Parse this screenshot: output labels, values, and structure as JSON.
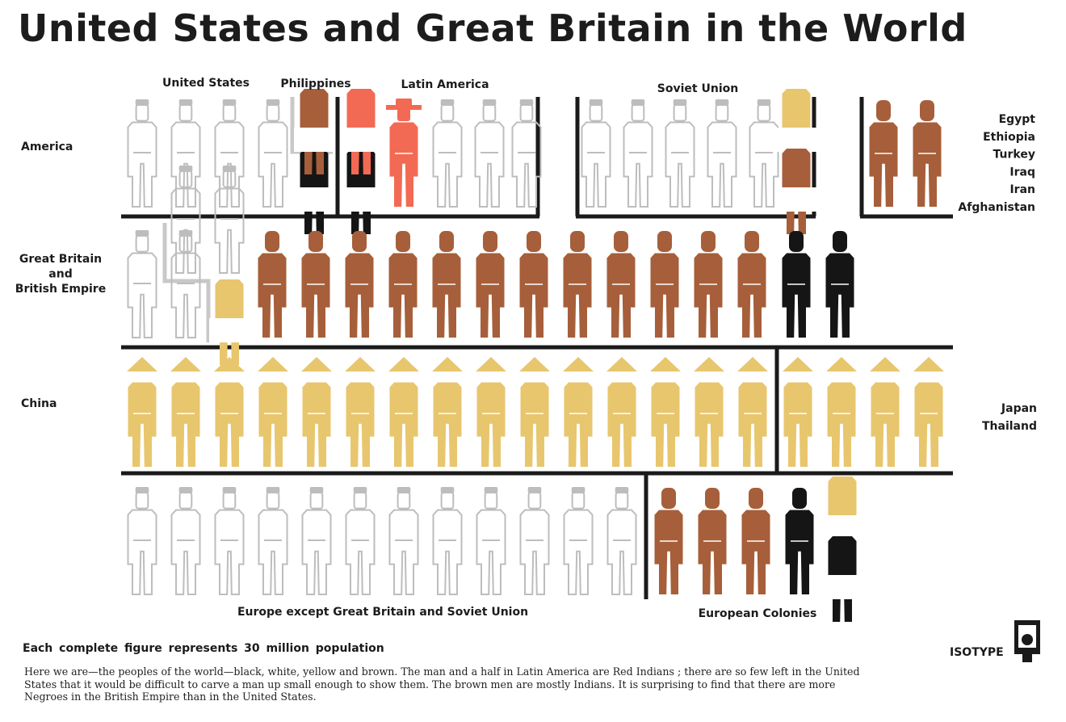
{
  "title": "United States and Great Britain in the World",
  "scale_note": "Each complete figure represents 30 million population",
  "caption": "Here we are—the peoples of the world—black, white, yellow and brown.  The man and a half in Latin America are Red Indians ; there are so few left in the United States that it would be difficult to carve a man up small enough to show them.  The brown men are mostly Indians.  It is surprising to find that there are more Negroes in the British Empire than in the United States.",
  "brand": "ISOTYPE",
  "brand_icon": "isotype-logo-icon",
  "colors": {
    "white": "#bdbdbd",
    "brown": "#a65f3a",
    "black": "#151515",
    "yellow": "#e8c66e",
    "red": "#f26a54",
    "rule": "#1a1a1a",
    "divider_grey": "#c8c8c8"
  },
  "chart_data": {
    "type": "pictogram",
    "unit": "Each complete figure represents 30 million population",
    "row_labels": {
      "america": "America",
      "britain": "Great Britain\nand\nBritish Empire",
      "china": "China",
      "europe": ""
    },
    "group_labels": {
      "us": "United States",
      "philippines": "Philippines",
      "latin_america": "Latin America",
      "soviet": "Soviet Union",
      "middle_east": "Egypt\nEthiopia\nTurkey\nIraq\nIran\nAfghanistan",
      "japan": "Japan\nThailand",
      "europe": "Europe except Great Britain and Soviet Union",
      "colonies": "European Colonies"
    },
    "groups": [
      {
        "key": "us",
        "row": "america",
        "white": 4,
        "black": 0.5
      },
      {
        "key": "philippines",
        "row": "america",
        "brown": 0.5
      },
      {
        "key": "latin_america",
        "row": "america",
        "red": 1.5,
        "black": 0.5,
        "white": 2.5
      },
      {
        "key": "soviet",
        "row": "america",
        "white": 5,
        "yellow": 0.5,
        "brown": 0.5
      },
      {
        "key": "middle_east",
        "row": "america",
        "brown": 2
      },
      {
        "key": "britain",
        "row": "britain",
        "white": 2.5,
        "yellow": 0.5,
        "brown": 12,
        "black": 2
      },
      {
        "key": "china",
        "row": "china",
        "yellow": 15
      },
      {
        "key": "japan",
        "row": "china",
        "yellow": 4
      },
      {
        "key": "europe",
        "row": "europe",
        "white": 12
      },
      {
        "key": "colonies",
        "row": "europe",
        "brown": 3,
        "black": 1.5,
        "yellow": 0.5
      }
    ]
  }
}
